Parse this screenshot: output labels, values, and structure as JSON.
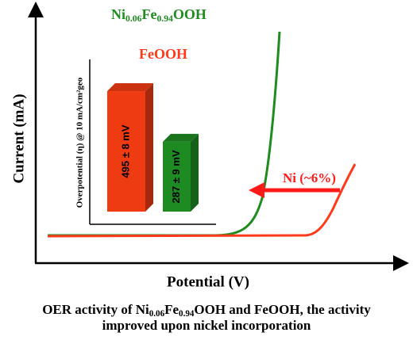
{
  "chart_data": {
    "type": "line",
    "xlabel": "Potential (V)",
    "ylabel": "Current (mA)",
    "series": [
      {
        "name": "Ni0.06Fe0.94OOH",
        "color": "#1f8c1f"
      },
      {
        "name": "FeOOH",
        "color": "#ff3a1a"
      }
    ],
    "annotation": "Ni (~6%)",
    "inset": {
      "type": "bar",
      "ylabel": "Overpotential (η) @ 10 mA/cm²geo",
      "categories": [
        null,
        null
      ],
      "values": [
        495,
        287
      ],
      "value_labels": [
        "495 ± 8 mV",
        "287 ± 9 mV"
      ],
      "colors": [
        "#ef3b12",
        "#1e8a22"
      ]
    }
  },
  "caption": [
    "OER activity of Ni0.06Fe0.94OOH and FeOOH, the activity",
    "improved upon nickel incorporation"
  ]
}
